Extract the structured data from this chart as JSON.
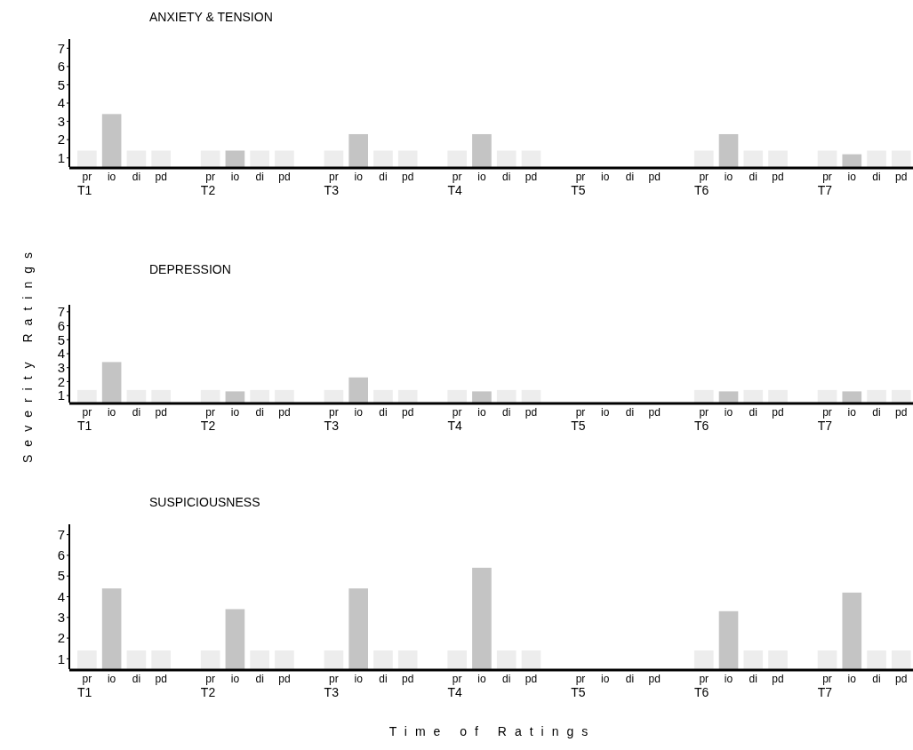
{
  "chart_data": [
    {
      "type": "bar",
      "title": "ANXIETY & TENSION",
      "categories": [
        "pr",
        "io",
        "di",
        "pd",
        "pr",
        "io",
        "di",
        "pd",
        "pr",
        "io",
        "di",
        "pd",
        "pr",
        "io",
        "di",
        "pd",
        "pr",
        "io",
        "di",
        "pd",
        "pr",
        "io",
        "di",
        "pd",
        "pr",
        "io",
        "di",
        "pd"
      ],
      "values": [
        1.4,
        3.4,
        1.4,
        1.4,
        1.4,
        1.4,
        1.4,
        1.4,
        1.4,
        2.3,
        1.4,
        1.4,
        1.4,
        2.3,
        1.4,
        1.4,
        null,
        null,
        null,
        null,
        1.4,
        2.3,
        1.4,
        1.4,
        1.4,
        1.2,
        1.4,
        1.4
      ],
      "colors": [
        "#ededed",
        "#c4c4c4",
        "#ededed",
        "#ededed",
        "#ededed",
        "#c4c4c4",
        "#ededed",
        "#ededed",
        "#ededed",
        "#c4c4c4",
        "#ededed",
        "#ededed",
        "#ededed",
        "#c4c4c4",
        "#ededed",
        "#ededed",
        null,
        null,
        null,
        null,
        "#ededed",
        "#c4c4c4",
        "#ededed",
        "#ededed",
        "#ededed",
        "#c4c4c4",
        "#ededed",
        "#ededed"
      ],
      "annotations": [
        "T1",
        "T2",
        "T3",
        "T4",
        "T5",
        "T6",
        "T7"
      ],
      "ylim": [
        0.5,
        7.5
      ],
      "yticks": [
        1,
        2,
        3,
        4,
        5,
        6,
        7
      ],
      "grid": false
    },
    {
      "type": "bar",
      "title": "DEPRESSION",
      "ylabel": "Severity Ratings",
      "categories": [
        "pr",
        "io",
        "di",
        "pd",
        "pr",
        "io",
        "di",
        "pd",
        "pr",
        "io",
        "di",
        "pd",
        "pr",
        "io",
        "di",
        "pd",
        "pr",
        "io",
        "di",
        "pd",
        "pr",
        "io",
        "di",
        "pd",
        "pr",
        "io",
        "di",
        "pd"
      ],
      "values": [
        1.4,
        3.4,
        1.4,
        1.4,
        1.4,
        1.3,
        1.4,
        1.4,
        1.4,
        2.3,
        1.4,
        1.4,
        1.4,
        1.3,
        1.4,
        1.4,
        null,
        null,
        null,
        null,
        1.4,
        1.3,
        1.4,
        1.4,
        1.4,
        1.3,
        1.4,
        1.4
      ],
      "colors": [
        "#ededed",
        "#c4c4c4",
        "#ededed",
        "#ededed",
        "#ededed",
        "#c4c4c4",
        "#ededed",
        "#ededed",
        "#ededed",
        "#c4c4c4",
        "#ededed",
        "#ededed",
        "#ededed",
        "#c4c4c4",
        "#ededed",
        "#ededed",
        null,
        null,
        null,
        null,
        "#ededed",
        "#c4c4c4",
        "#ededed",
        "#ededed",
        "#ededed",
        "#c4c4c4",
        "#ededed",
        "#ededed"
      ],
      "annotations": [
        "T1",
        "T2",
        "T3",
        "T4",
        "T5",
        "T6",
        "T7"
      ],
      "ylim": [
        0.5,
        7.5
      ],
      "yticks": [
        1,
        2,
        3,
        4,
        5,
        6,
        7
      ],
      "grid": false
    },
    {
      "type": "bar",
      "title": "SUSPICIOUSNESS",
      "xlabel": "Time of Ratings",
      "categories": [
        "pr",
        "io",
        "di",
        "pd",
        "pr",
        "io",
        "di",
        "pd",
        "pr",
        "io",
        "di",
        "pd",
        "pr",
        "io",
        "di",
        "pd",
        "pr",
        "io",
        "di",
        "pd",
        "pr",
        "io",
        "di",
        "pd",
        "pr",
        "io",
        "di",
        "pd"
      ],
      "values": [
        1.4,
        4.4,
        1.4,
        1.4,
        1.4,
        3.4,
        1.4,
        1.4,
        1.4,
        4.4,
        1.4,
        1.4,
        1.4,
        5.4,
        1.4,
        1.4,
        null,
        null,
        null,
        null,
        1.4,
        3.3,
        1.4,
        1.4,
        1.4,
        4.2,
        1.4,
        1.4
      ],
      "colors": [
        "#ededed",
        "#c4c4c4",
        "#ededed",
        "#ededed",
        "#ededed",
        "#c4c4c4",
        "#ededed",
        "#ededed",
        "#ededed",
        "#c4c4c4",
        "#ededed",
        "#ededed",
        "#ededed",
        "#c4c4c4",
        "#ededed",
        "#ededed",
        null,
        null,
        null,
        null,
        "#ededed",
        "#c4c4c4",
        "#ededed",
        "#ededed",
        "#ededed",
        "#c4c4c4",
        "#ededed",
        "#ededed"
      ],
      "annotations": [
        "T1",
        "T2",
        "T3",
        "T4",
        "T5",
        "T6",
        "T7"
      ],
      "ylim": [
        0.5,
        7.5
      ],
      "yticks": [
        1,
        2,
        3,
        4,
        5,
        6,
        7
      ],
      "grid": false
    }
  ]
}
